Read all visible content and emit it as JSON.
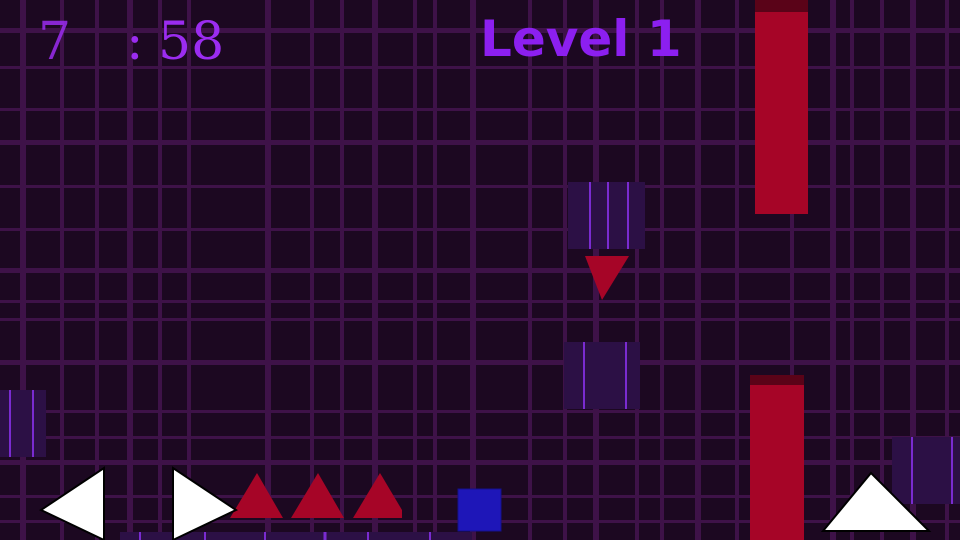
{
  "hud": {
    "minutes": "7",
    "separator": ":",
    "seconds": "58",
    "level": "Level 1"
  },
  "colors": {
    "background": "#1c0821",
    "grid": "#3e1248",
    "hazard": "#a60527",
    "player": "#1e16b8",
    "platform": "#2c1045",
    "text": "#9b2cf0"
  },
  "controls": {
    "left": "arrow-left",
    "right": "arrow-right",
    "jump": "arrow-up"
  }
}
